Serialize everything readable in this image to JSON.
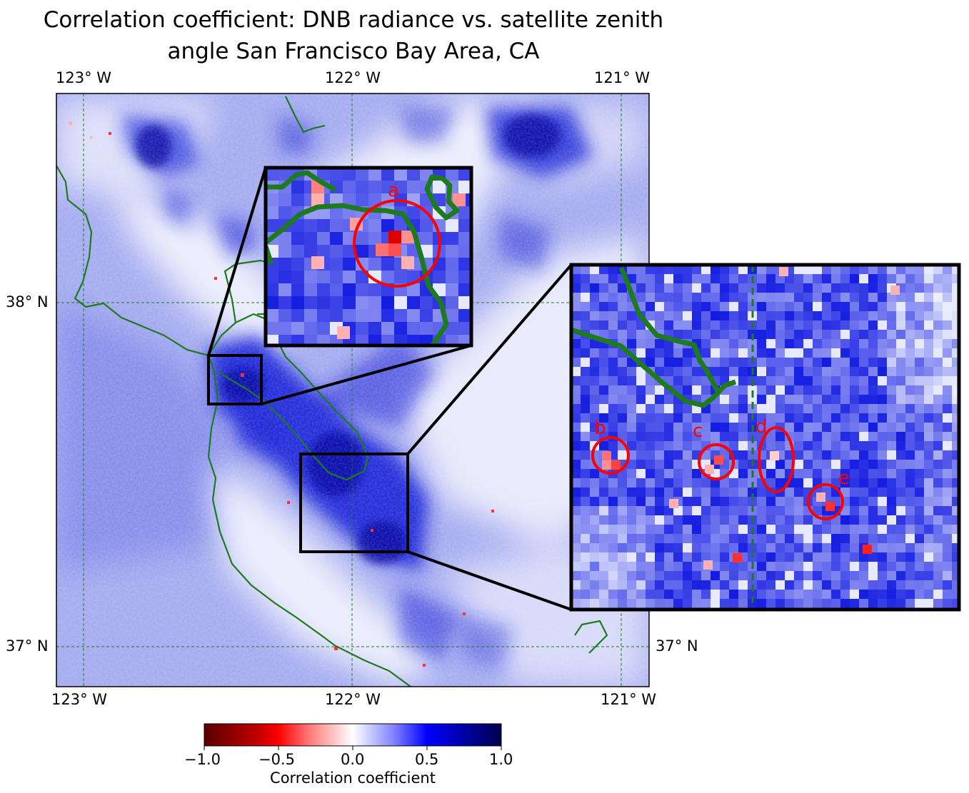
{
  "title": {
    "line1": "Correlation coefficient: DNB radiance vs. satellite zenith",
    "line2": "angle San Francisco Bay Area, CA"
  },
  "axes": {
    "lon_top": [
      "123° W",
      "122° W",
      "121° W"
    ],
    "lon_bottom": [
      "123° W",
      "122° W",
      "121° W"
    ],
    "lat_left": [
      "38° N",
      "37° N"
    ],
    "lat_right": [
      "37° N"
    ],
    "lon_range": [
      -123.08,
      -120.9
    ],
    "lat_range": [
      36.88,
      38.62
    ]
  },
  "colorbar": {
    "label": "Correlation coefficient",
    "ticks": [
      "−1.0",
      "−0.5",
      "0.0",
      "0.5",
      "1.0"
    ],
    "range": [
      -1.0,
      1.0
    ],
    "colormap": "seismic_r"
  },
  "colors": {
    "coastline": "#1e7a1e",
    "gridline": "#1e7a1e",
    "marker": "#ff0000",
    "box": "#000000"
  },
  "annotations": {
    "labels": [
      "a",
      "b",
      "c",
      "d",
      "e"
    ]
  }
}
